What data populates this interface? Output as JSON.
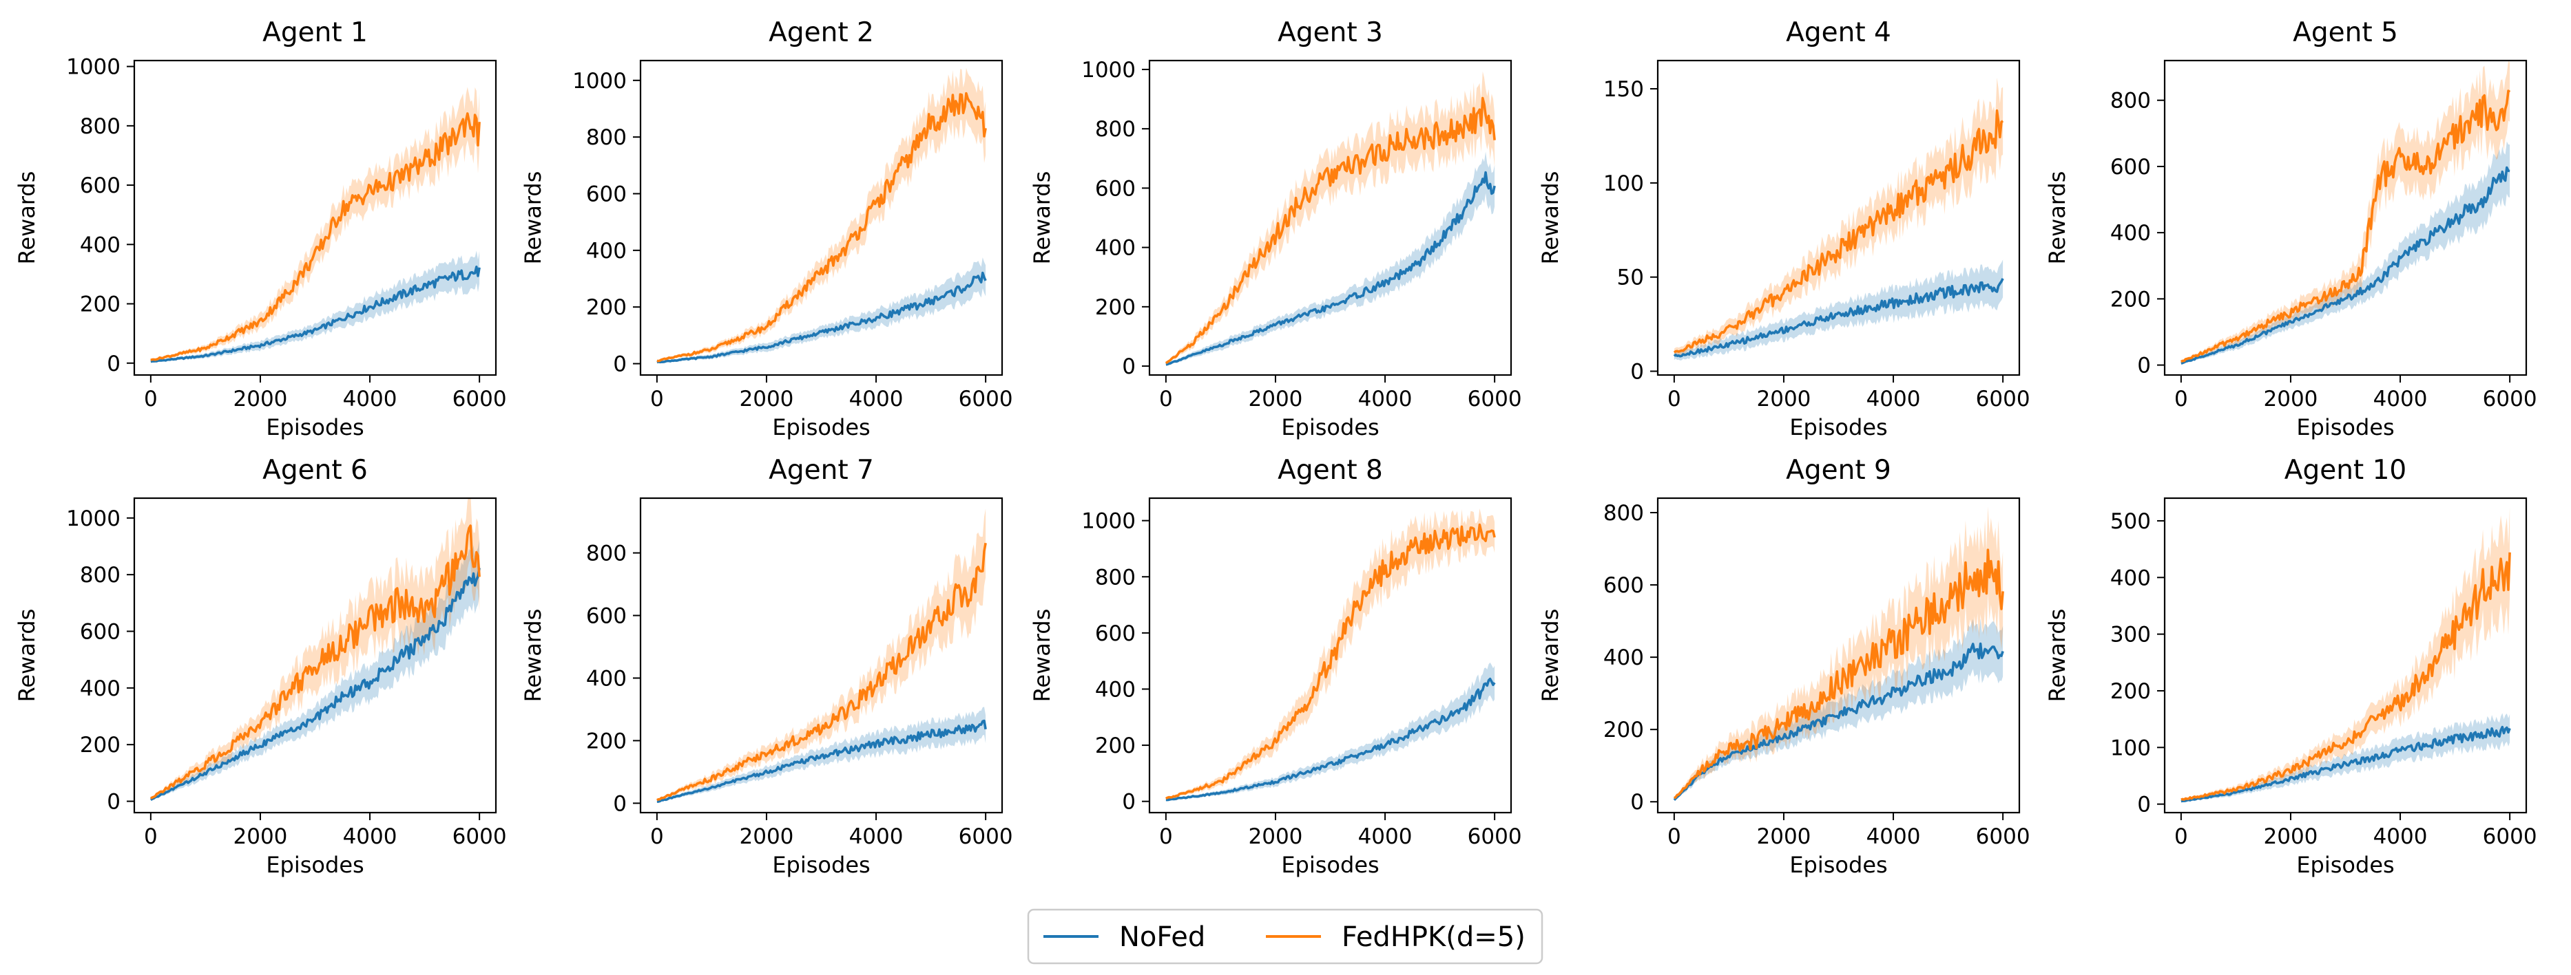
{
  "colors": {
    "NoFed": "#1f77b4",
    "FedHPK": "#ff7f0e",
    "NoFed_band": "#1f77b4",
    "FedHPK_band": "#ff7f0e"
  },
  "legend": {
    "placement": "bottom-center",
    "entries": [
      "NoFed",
      "FedHPK(d=5)"
    ]
  },
  "chart_data": [
    {
      "type": "line",
      "title": "Agent 1",
      "xlabel": "Episodes",
      "ylabel": "Rewards",
      "xlim": [
        -300,
        6300
      ],
      "ylim": [
        -40,
        1020
      ],
      "xticks": [
        0,
        2000,
        4000,
        6000
      ],
      "yticks": [
        0,
        200,
        400,
        600,
        800,
        1000
      ],
      "grid": false,
      "series": [
        {
          "name": "NoFed",
          "x": [
            0,
            1000,
            2000,
            3000,
            4000,
            5000,
            5500,
            6000
          ],
          "values": [
            5,
            25,
            60,
            110,
            190,
            260,
            290,
            310
          ],
          "band": [
            3,
            8,
            15,
            20,
            35,
            45,
            50,
            55
          ]
        },
        {
          "name": "FedHPK(d=5)",
          "x": [
            0,
            1000,
            2000,
            2500,
            3000,
            3500,
            4000,
            4500,
            5000,
            5500,
            5800,
            6000
          ],
          "values": [
            10,
            50,
            140,
            240,
            360,
            520,
            580,
            620,
            680,
            750,
            830,
            770
          ],
          "band": [
            3,
            10,
            25,
            35,
            45,
            55,
            60,
            60,
            70,
            80,
            90,
            95
          ]
        }
      ]
    },
    {
      "type": "line",
      "title": "Agent 2",
      "xlabel": "Episodes",
      "ylabel": "Rewards",
      "xlim": [
        -300,
        6300
      ],
      "ylim": [
        -40,
        1070
      ],
      "xticks": [
        0,
        2000,
        4000,
        6000
      ],
      "yticks": [
        0,
        200,
        400,
        600,
        800,
        1000
      ],
      "grid": false,
      "series": [
        {
          "name": "NoFed",
          "x": [
            0,
            1000,
            2000,
            3000,
            4000,
            5000,
            5500,
            6000
          ],
          "values": [
            5,
            25,
            60,
            110,
            160,
            220,
            260,
            310
          ],
          "band": [
            3,
            8,
            15,
            20,
            30,
            40,
            50,
            55
          ]
        },
        {
          "name": "FedHPK(d=5)",
          "x": [
            0,
            1000,
            2000,
            2500,
            3000,
            3500,
            4000,
            4500,
            5000,
            5500,
            5800,
            6000
          ],
          "values": [
            10,
            50,
            130,
            230,
            320,
            420,
            560,
            700,
            850,
            920,
            900,
            820
          ],
          "band": [
            3,
            10,
            20,
            30,
            40,
            50,
            60,
            70,
            80,
            90,
            90,
            95
          ]
        }
      ]
    },
    {
      "type": "line",
      "title": "Agent 3",
      "xlabel": "Episodes",
      "ylabel": "Rewards",
      "xlim": [
        -300,
        6300
      ],
      "ylim": [
        -30,
        1030
      ],
      "xticks": [
        0,
        2000,
        4000,
        6000
      ],
      "yticks": [
        0,
        200,
        400,
        600,
        800,
        1000
      ],
      "grid": false,
      "series": [
        {
          "name": "NoFed",
          "x": [
            0,
            1000,
            2000,
            3000,
            4000,
            4500,
            5000,
            5500,
            5800,
            6000
          ],
          "values": [
            5,
            70,
            140,
            200,
            280,
            330,
            420,
            540,
            640,
            590
          ],
          "band": [
            3,
            15,
            20,
            25,
            40,
            45,
            50,
            60,
            70,
            70
          ]
        },
        {
          "name": "FedHPK(d=5)",
          "x": [
            0,
            500,
            1000,
            1500,
            2000,
            2500,
            3000,
            3500,
            4000,
            4500,
            5000,
            5500,
            5800,
            6000
          ],
          "values": [
            10,
            80,
            180,
            320,
            440,
            570,
            640,
            680,
            730,
            770,
            780,
            800,
            870,
            760
          ],
          "band": [
            3,
            15,
            25,
            40,
            55,
            65,
            70,
            75,
            80,
            80,
            80,
            85,
            90,
            90
          ]
        }
      ]
    },
    {
      "type": "line",
      "title": "Agent 4",
      "xlabel": "Episodes",
      "ylabel": "Rewards",
      "xlim": [
        -300,
        6300
      ],
      "ylim": [
        -2,
        165
      ],
      "xticks": [
        0,
        2000,
        4000,
        6000
      ],
      "yticks": [
        0,
        50,
        100,
        150
      ],
      "grid": false,
      "series": [
        {
          "name": "NoFed",
          "x": [
            0,
            1000,
            2000,
            3000,
            4000,
            5000,
            6000
          ],
          "values": [
            8,
            14,
            22,
            30,
            36,
            42,
            46
          ],
          "band": [
            2,
            4,
            5,
            6,
            8,
            9,
            10
          ]
        },
        {
          "name": "FedHPK(d=5)",
          "x": [
            0,
            1000,
            2000,
            3000,
            4000,
            5000,
            5500,
            6000
          ],
          "values": [
            10,
            22,
            42,
            64,
            86,
            106,
            118,
            132
          ],
          "band": [
            2,
            4,
            7,
            10,
            12,
            14,
            16,
            18
          ]
        }
      ]
    },
    {
      "type": "line",
      "title": "Agent 5",
      "xlabel": "Episodes",
      "ylabel": "Rewards",
      "xlim": [
        -300,
        6300
      ],
      "ylim": [
        -30,
        920
      ],
      "xticks": [
        0,
        2000,
        4000,
        6000
      ],
      "yticks": [
        0,
        200,
        400,
        600,
        800
      ],
      "grid": false,
      "series": [
        {
          "name": "NoFed",
          "x": [
            0,
            1000,
            2000,
            3000,
            3500,
            4000,
            4500,
            5000,
            5500,
            6000
          ],
          "values": [
            5,
            60,
            130,
            200,
            240,
            320,
            380,
            440,
            500,
            600
          ],
          "band": [
            3,
            12,
            20,
            30,
            35,
            45,
            50,
            60,
            70,
            80
          ]
        },
        {
          "name": "FedHPK(d=5)",
          "x": [
            0,
            1000,
            2000,
            3000,
            3300,
            3600,
            4000,
            4500,
            5000,
            5500,
            5800,
            6000
          ],
          "values": [
            10,
            80,
            160,
            240,
            300,
            560,
            620,
            600,
            700,
            770,
            730,
            800
          ],
          "band": [
            3,
            15,
            25,
            35,
            50,
            70,
            80,
            80,
            85,
            90,
            90,
            90
          ]
        }
      ]
    },
    {
      "type": "line",
      "title": "Agent 6",
      "xlabel": "Episodes",
      "ylabel": "Rewards",
      "xlim": [
        -300,
        6300
      ],
      "ylim": [
        -40,
        1070
      ],
      "xticks": [
        0,
        2000,
        4000,
        6000
      ],
      "yticks": [
        0,
        200,
        400,
        600,
        800,
        1000
      ],
      "grid": false,
      "series": [
        {
          "name": "NoFed",
          "x": [
            0,
            1000,
            2000,
            3000,
            3500,
            4000,
            4500,
            5000,
            5500,
            5800,
            6000
          ],
          "values": [
            5,
            100,
            200,
            290,
            370,
            420,
            500,
            570,
            680,
            780,
            800
          ],
          "band": [
            3,
            20,
            30,
            40,
            55,
            60,
            70,
            80,
            90,
            100,
            100
          ]
        },
        {
          "name": "FedHPK(d=5)",
          "x": [
            0,
            1000,
            2000,
            2500,
            3000,
            3500,
            4000,
            4500,
            5000,
            5500,
            5800,
            6000
          ],
          "values": [
            10,
            130,
            270,
            380,
            480,
            560,
            640,
            700,
            650,
            800,
            930,
            830
          ],
          "band": [
            3,
            25,
            40,
            60,
            80,
            90,
            100,
            110,
            120,
            120,
            120,
            120
          ]
        }
      ]
    },
    {
      "type": "line",
      "title": "Agent 7",
      "xlabel": "Episodes",
      "ylabel": "Rewards",
      "xlim": [
        -300,
        6300
      ],
      "ylim": [
        -30,
        975
      ],
      "xticks": [
        0,
        2000,
        4000,
        6000
      ],
      "yticks": [
        0,
        200,
        400,
        600,
        800
      ],
      "grid": false,
      "series": [
        {
          "name": "NoFed",
          "x": [
            0,
            1000,
            2000,
            3000,
            4000,
            5000,
            6000
          ],
          "values": [
            5,
            50,
            100,
            150,
            190,
            220,
            250
          ],
          "band": [
            3,
            10,
            18,
            25,
            35,
            40,
            45
          ]
        },
        {
          "name": "FedHPK(d=5)",
          "x": [
            0,
            1000,
            2000,
            3000,
            3500,
            4000,
            4500,
            5000,
            5500,
            5800,
            6000
          ],
          "values": [
            10,
            80,
            160,
            240,
            300,
            380,
            470,
            560,
            660,
            700,
            780
          ],
          "band": [
            3,
            15,
            25,
            35,
            45,
            55,
            70,
            80,
            100,
            110,
            110
          ]
        }
      ]
    },
    {
      "type": "line",
      "title": "Agent 8",
      "xlabel": "Episodes",
      "ylabel": "Rewards",
      "xlim": [
        -300,
        6300
      ],
      "ylim": [
        -40,
        1080
      ],
      "xticks": [
        0,
        2000,
        4000,
        6000
      ],
      "yticks": [
        0,
        200,
        400,
        600,
        800,
        1000
      ],
      "grid": false,
      "series": [
        {
          "name": "NoFed",
          "x": [
            0,
            1000,
            2000,
            3000,
            4000,
            5000,
            5500,
            6000
          ],
          "values": [
            5,
            30,
            70,
            130,
            200,
            290,
            340,
            440
          ],
          "band": [
            3,
            8,
            15,
            22,
            30,
            40,
            50,
            60
          ]
        },
        {
          "name": "FedHPK(d=5)",
          "x": [
            0,
            1000,
            2000,
            2500,
            3000,
            3500,
            4000,
            4500,
            5000,
            5500,
            6000
          ],
          "values": [
            10,
            70,
            210,
            330,
            500,
            700,
            830,
            900,
            930,
            950,
            960
          ],
          "band": [
            3,
            15,
            35,
            50,
            65,
            75,
            80,
            80,
            70,
            60,
            55
          ]
        }
      ]
    },
    {
      "type": "line",
      "title": "Agent 9",
      "xlabel": "Episodes",
      "ylabel": "Rewards",
      "xlim": [
        -300,
        6300
      ],
      "ylim": [
        -30,
        840
      ],
      "xticks": [
        0,
        2000,
        4000,
        6000
      ],
      "yticks": [
        0,
        200,
        400,
        600,
        800
      ],
      "grid": false,
      "series": [
        {
          "name": "NoFed",
          "x": [
            0,
            500,
            1000,
            2000,
            3000,
            4000,
            4500,
            5000,
            5500,
            6000
          ],
          "values": [
            5,
            80,
            130,
            180,
            240,
            300,
            340,
            360,
            420,
            400
          ],
          "band": [
            3,
            15,
            20,
            30,
            40,
            50,
            55,
            60,
            70,
            70
          ]
        },
        {
          "name": "FedHPK(d=5)",
          "x": [
            0,
            500,
            1000,
            1500,
            2000,
            2500,
            3000,
            3500,
            4000,
            4500,
            5000,
            5500,
            5800,
            6000
          ],
          "values": [
            10,
            90,
            150,
            170,
            220,
            260,
            330,
            380,
            440,
            500,
            560,
            620,
            650,
            570
          ],
          "band": [
            3,
            20,
            30,
            40,
            50,
            60,
            70,
            80,
            90,
            100,
            110,
            120,
            120,
            110
          ]
        }
      ]
    },
    {
      "type": "line",
      "title": "Agent 10",
      "xlabel": "Episodes",
      "ylabel": "Rewards",
      "xlim": [
        -300,
        6300
      ],
      "ylim": [
        -15,
        540
      ],
      "xticks": [
        0,
        2000,
        4000,
        6000
      ],
      "yticks": [
        0,
        100,
        200,
        300,
        400,
        500
      ],
      "grid": false,
      "series": [
        {
          "name": "NoFed",
          "x": [
            0,
            1000,
            2000,
            3000,
            4000,
            5000,
            6000
          ],
          "values": [
            5,
            20,
            45,
            70,
            95,
            115,
            130
          ],
          "band": [
            2,
            5,
            10,
            15,
            20,
            22,
            25
          ]
        },
        {
          "name": "FedHPK(d=5)",
          "x": [
            0,
            1000,
            2000,
            3000,
            4000,
            4500,
            5000,
            5500,
            6000
          ],
          "values": [
            8,
            25,
            60,
            110,
            180,
            230,
            300,
            380,
            410
          ],
          "band": [
            2,
            6,
            12,
            20,
            30,
            40,
            55,
            70,
            80
          ]
        }
      ]
    }
  ]
}
